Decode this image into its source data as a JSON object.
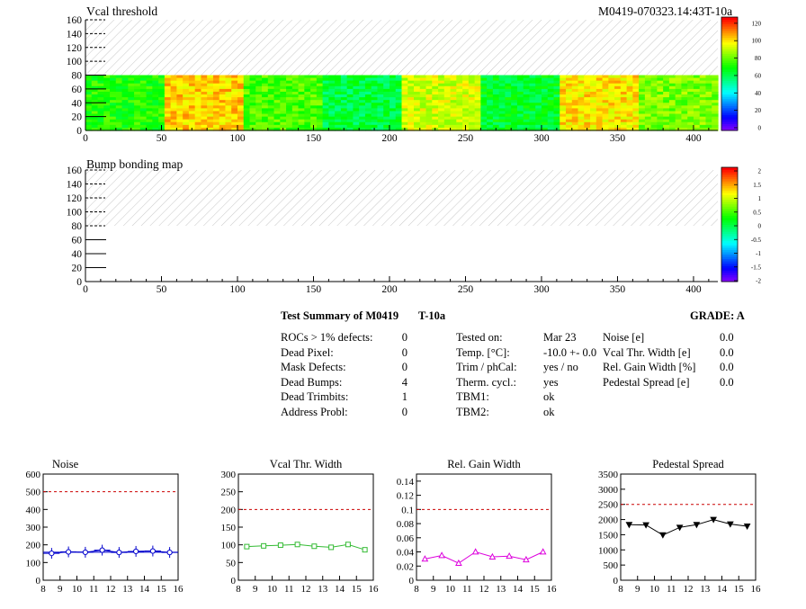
{
  "top_map": {
    "title": "Vcal threshold",
    "run_label": "M0419-070323.14:43T-10a",
    "x_ticks": [
      0,
      50,
      100,
      150,
      200,
      250,
      300,
      350,
      400
    ],
    "y_ticks": [
      0,
      20,
      40,
      60,
      80,
      100,
      120,
      140,
      160
    ],
    "palette_ticks": [
      0,
      20,
      40,
      60,
      80,
      100,
      120
    ]
  },
  "bottom_map": {
    "title": "Bump bonding map",
    "x_ticks": [
      0,
      50,
      100,
      150,
      200,
      250,
      300,
      350,
      400
    ],
    "y_ticks": [
      0,
      20,
      40,
      60,
      80,
      100,
      120,
      140,
      160
    ],
    "palette_ticks": [
      "-2",
      "-1.5",
      "-1",
      "-0.5",
      "0",
      "0.5",
      "1",
      "1.5",
      "2"
    ]
  },
  "summary": {
    "title": "Test Summary of M0419",
    "tag": "T-10a",
    "grade": "GRADE:  A",
    "left": [
      {
        "label": "ROCs > 1% defects:",
        "value": "0"
      },
      {
        "label": "Dead Pixel:",
        "value": "0"
      },
      {
        "label": "Mask Defects:",
        "value": "0"
      },
      {
        "label": "Dead Bumps:",
        "value": "4"
      },
      {
        "label": "Dead Trimbits:",
        "value": "1"
      },
      {
        "label": "Address Probl:",
        "value": "0"
      }
    ],
    "middle": [
      {
        "label": "Tested on:",
        "value": "Mar 23"
      },
      {
        "label": "Temp. [°C]:",
        "value": "-10.0 +- 0.0"
      },
      {
        "label": "Trim / phCal:",
        "value": "yes / no"
      },
      {
        "label": "Therm. cycl.:",
        "value": "yes"
      },
      {
        "label": "TBM1:",
        "value": "ok"
      },
      {
        "label": "TBM2:",
        "value": "ok"
      }
    ],
    "right": [
      {
        "label": "Noise [e]",
        "value": "0.0"
      },
      {
        "label": "Vcal Thr. Width [e]",
        "value": "0.0"
      },
      {
        "label": "Rel. Gain Width [%]",
        "value": "0.0"
      },
      {
        "label": "Pedestal Spread [e]",
        "value": "0.0"
      }
    ]
  },
  "chart_data": [
    {
      "type": "line",
      "title": "Noise",
      "x": [
        8.5,
        9.5,
        10.5,
        11.5,
        12.5,
        13.5,
        14.5,
        15.5
      ],
      "values": [
        152,
        160,
        158,
        170,
        157,
        163,
        165,
        157
      ],
      "xlim": [
        8,
        16
      ],
      "ylim": [
        0,
        600
      ],
      "x_ticks": [
        8,
        9,
        10,
        11,
        12,
        13,
        14,
        15,
        16
      ],
      "y_ticks": [
        0,
        100,
        200,
        300,
        400,
        500,
        600
      ],
      "threshold": 500,
      "color": "#0000cc",
      "marker": "circle",
      "error_bars": true,
      "fit_line": 158
    },
    {
      "type": "line",
      "title": "Vcal Thr. Width",
      "x": [
        8.5,
        9.5,
        10.5,
        11.5,
        12.5,
        13.5,
        14.5,
        15.5
      ],
      "values": [
        95,
        97,
        99,
        101,
        96,
        93,
        101,
        86
      ],
      "xlim": [
        8,
        16
      ],
      "ylim": [
        0,
        300
      ],
      "x_ticks": [
        8,
        9,
        10,
        11,
        12,
        13,
        14,
        15,
        16
      ],
      "y_ticks": [
        0,
        50,
        100,
        150,
        200,
        250,
        300
      ],
      "threshold": 200,
      "color": "#33bb33",
      "marker": "square"
    },
    {
      "type": "line",
      "title": "Rel. Gain Width",
      "x": [
        8.5,
        9.5,
        10.5,
        11.5,
        12.5,
        13.5,
        14.5,
        15.5
      ],
      "values": [
        0.03,
        0.035,
        0.024,
        0.04,
        0.033,
        0.034,
        0.029,
        0.04
      ],
      "xlim": [
        8,
        16
      ],
      "ylim": [
        0,
        0.15
      ],
      "x_ticks": [
        8,
        9,
        10,
        11,
        12,
        13,
        14,
        15,
        16
      ],
      "y_ticks": [
        0,
        0.02,
        0.04,
        0.06,
        0.08,
        0.1,
        0.12,
        0.14
      ],
      "threshold": 0.1,
      "color": "#dd00dd",
      "marker": "triangle-up"
    },
    {
      "type": "line",
      "title": "Pedestal Spread",
      "x": [
        8.5,
        9.5,
        10.5,
        11.5,
        12.5,
        13.5,
        14.5,
        15.5
      ],
      "values": [
        1830,
        1820,
        1490,
        1740,
        1830,
        2000,
        1850,
        1780
      ],
      "xlim": [
        8,
        16
      ],
      "ylim": [
        0,
        3500
      ],
      "x_ticks": [
        8,
        9,
        10,
        11,
        12,
        13,
        14,
        15,
        16
      ],
      "y_ticks": [
        0,
        500,
        1000,
        1500,
        2000,
        2500,
        3000,
        3500
      ],
      "threshold": 2500,
      "color": "#000000",
      "marker": "triangle-down"
    }
  ]
}
